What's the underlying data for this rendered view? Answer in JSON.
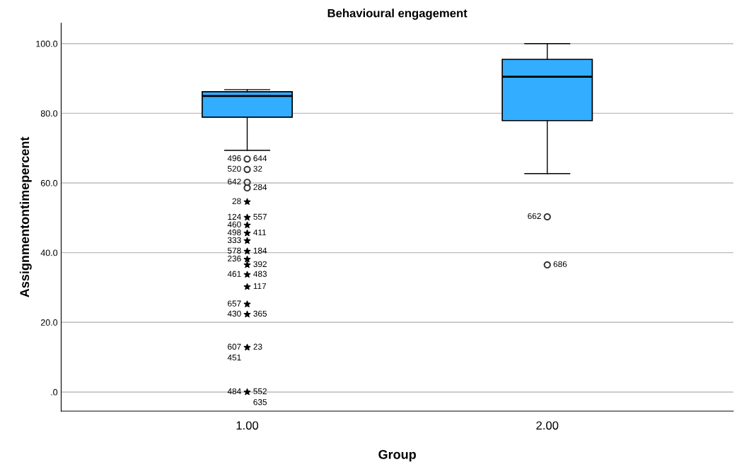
{
  "chart_data": {
    "type": "box",
    "title": "Behavioural engagement",
    "xlabel": "Group",
    "ylabel": "Assignmentontimepercent",
    "categories": [
      "1.00",
      "2.00"
    ],
    "boxes": [
      {
        "low": 69.4,
        "q1": 78.9,
        "median": 85.0,
        "q3": 86.2,
        "high": 86.8
      },
      {
        "low": 62.7,
        "q1": 77.9,
        "median": 90.5,
        "q3": 95.5,
        "high": 100.0
      }
    ],
    "color": "#33adff",
    "series": [
      {
        "type": "scatter",
        "marker": "circle",
        "color": "#333333",
        "x": [
          "1.00",
          "1.00",
          "1.00",
          "1.00",
          "2.00",
          "2.00"
        ],
        "values": [
          66.9,
          63.9,
          60.2,
          58.6,
          50.3,
          36.5
        ]
      },
      {
        "type": "scatter",
        "marker": "star",
        "color": "#000000",
        "x": [
          "1.00",
          "1.00",
          "1.00",
          "1.00",
          "1.00",
          "1.00",
          "1.00",
          "1.00",
          "1.00",
          "1.00",
          "1.00",
          "1.00",
          "1.00",
          "1.00"
        ],
        "values": [
          54.6,
          50.1,
          47.9,
          45.6,
          43.4,
          40.4,
          38.1,
          36.5,
          33.7,
          30.2,
          25.2,
          22.3,
          12.8,
          0.0
        ]
      }
    ],
    "ylim": [
      -5.5,
      105.9
    ],
    "yticks": [
      {
        "value": 0,
        "label": ".0"
      },
      {
        "value": 20,
        "label": "20.0"
      },
      {
        "value": 40,
        "label": "40.0"
      },
      {
        "value": 60,
        "label": "60.0"
      },
      {
        "value": 80,
        "label": "80.0"
      },
      {
        "value": 100,
        "label": "100.0"
      }
    ],
    "grid": "y",
    "annotations": [
      {
        "text": "496",
        "x": "1.00",
        "y": 66.9
      },
      {
        "text": "644",
        "x": "1.00",
        "y": 66.9
      },
      {
        "text": "32",
        "x": "1.00",
        "y": 63.9
      },
      {
        "text": "520",
        "x": "1.00",
        "y": 63.9
      },
      {
        "text": "642",
        "x": "1.00",
        "y": 60.2
      },
      {
        "text": "284",
        "x": "1.00",
        "y": 58.6
      },
      {
        "text": "28",
        "x": "1.00",
        "y": 54.6
      },
      {
        "text": "557",
        "x": "1.00",
        "y": 50.1
      },
      {
        "text": "124",
        "x": "1.00",
        "y": 50.1
      },
      {
        "text": "460",
        "x": "1.00",
        "y": 47.9
      },
      {
        "text": "411",
        "x": "1.00",
        "y": 45.6
      },
      {
        "text": "498",
        "x": "1.00",
        "y": 45.6
      },
      {
        "text": "333",
        "x": "1.00",
        "y": 43.4
      },
      {
        "text": "184",
        "x": "1.00",
        "y": 40.4
      },
      {
        "text": "578",
        "x": "1.00",
        "y": 40.4
      },
      {
        "text": "236",
        "x": "1.00",
        "y": 38.1
      },
      {
        "text": "392",
        "x": "1.00",
        "y": 36.5
      },
      {
        "text": "461",
        "x": "1.00",
        "y": 33.7
      },
      {
        "text": "483",
        "x": "1.00",
        "y": 33.7
      },
      {
        "text": "117",
        "x": "1.00",
        "y": 30.2
      },
      {
        "text": "657",
        "x": "1.00",
        "y": 25.2
      },
      {
        "text": "365",
        "x": "1.00",
        "y": 22.3
      },
      {
        "text": "430",
        "x": "1.00",
        "y": 22.3
      },
      {
        "text": "607",
        "x": "1.00",
        "y": 12.8
      },
      {
        "text": "23",
        "x": "1.00",
        "y": 12.8
      },
      {
        "text": "451",
        "x": "1.00",
        "y": 12.8
      },
      {
        "text": "552",
        "x": "1.00",
        "y": 0.0
      },
      {
        "text": "484",
        "x": "1.00",
        "y": 0.0
      },
      {
        "text": "635",
        "x": "1.00",
        "y": 0.0
      },
      {
        "text": "662",
        "x": "2.00",
        "y": 50.3
      },
      {
        "text": "686",
        "x": "2.00",
        "y": 36.5
      }
    ]
  }
}
